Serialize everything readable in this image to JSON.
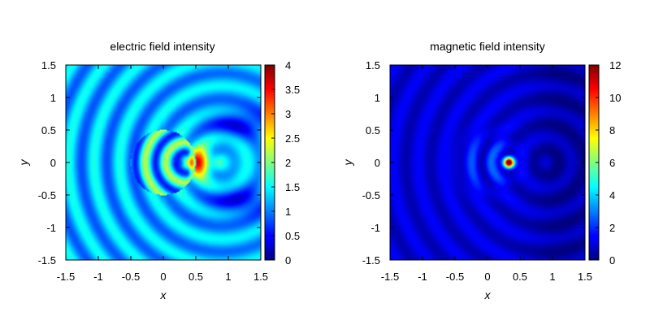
{
  "chart_data": [
    {
      "type": "heatmap",
      "title": "electric field intensity",
      "xlabel": "x",
      "ylabel": "y",
      "xlim": [
        -1.5,
        1.5
      ],
      "ylim": [
        -1.5,
        1.5
      ],
      "x_ticks": [
        "-1.5",
        "-1",
        "-0.5",
        "0",
        "0.5",
        "1",
        "1.5"
      ],
      "y_ticks": [
        "1.5",
        "1",
        "0.5",
        "0",
        "-0.5",
        "-1",
        "-1.5"
      ],
      "colorbar": {
        "range": [
          0,
          4
        ],
        "ticks": [
          "4",
          "3.5",
          "3",
          "2.5",
          "2",
          "1.5",
          "1",
          "0.5",
          "0"
        ],
        "colormap": "jet"
      },
      "scatterer": {
        "shape": "circle",
        "center": [
          0,
          0
        ],
        "radius": 0.5
      },
      "background_level": 1.2,
      "peak_value": 4,
      "peak_location": [
        0.45,
        0
      ]
    },
    {
      "type": "heatmap",
      "title": "magnetic field intensity",
      "xlabel": "x",
      "ylabel": "y",
      "xlim": [
        -1.5,
        1.5
      ],
      "ylim": [
        -1.5,
        1.5
      ],
      "x_ticks": [
        "-1.5",
        "-1",
        "-0.5",
        "0",
        "0.5",
        "1",
        "1.5"
      ],
      "y_ticks": [
        "1.5",
        "1",
        "0.5",
        "0",
        "-0.5",
        "-1",
        "-1.5"
      ],
      "colorbar": {
        "range": [
          0,
          12
        ],
        "ticks": [
          "12",
          "10",
          "8",
          "6",
          "4",
          "2",
          "0"
        ],
        "colormap": "jet"
      },
      "background_level": 1.0,
      "peak_value": 12,
      "peak_location": [
        0.33,
        0
      ]
    }
  ]
}
